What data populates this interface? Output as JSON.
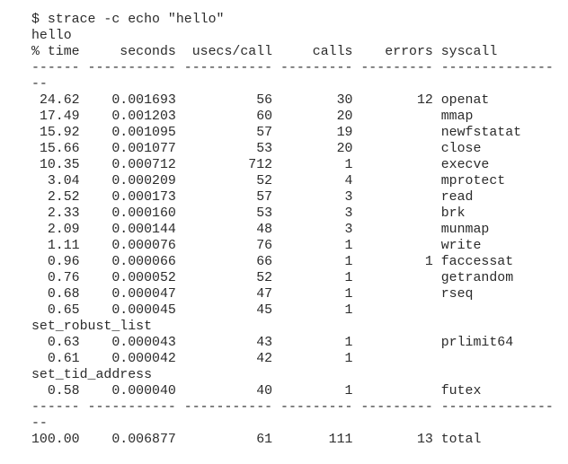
{
  "command": "$ strace -c echo \"hello\"",
  "output": "hello",
  "headers": [
    "% time",
    "seconds",
    "usecs/call",
    "calls",
    "errors",
    "syscall"
  ],
  "rows": [
    {
      "pct": "24.62",
      "seconds": "0.001693",
      "usecs": "56",
      "calls": "30",
      "errors": "12",
      "syscall": "openat"
    },
    {
      "pct": "17.49",
      "seconds": "0.001203",
      "usecs": "60",
      "calls": "20",
      "errors": "",
      "syscall": "mmap"
    },
    {
      "pct": "15.92",
      "seconds": "0.001095",
      "usecs": "57",
      "calls": "19",
      "errors": "",
      "syscall": "newfstatat"
    },
    {
      "pct": "15.66",
      "seconds": "0.001077",
      "usecs": "53",
      "calls": "20",
      "errors": "",
      "syscall": "close"
    },
    {
      "pct": "10.35",
      "seconds": "0.000712",
      "usecs": "712",
      "calls": "1",
      "errors": "",
      "syscall": "execve"
    },
    {
      "pct": "3.04",
      "seconds": "0.000209",
      "usecs": "52",
      "calls": "4",
      "errors": "",
      "syscall": "mprotect"
    },
    {
      "pct": "2.52",
      "seconds": "0.000173",
      "usecs": "57",
      "calls": "3",
      "errors": "",
      "syscall": "read"
    },
    {
      "pct": "2.33",
      "seconds": "0.000160",
      "usecs": "53",
      "calls": "3",
      "errors": "",
      "syscall": "brk"
    },
    {
      "pct": "2.09",
      "seconds": "0.000144",
      "usecs": "48",
      "calls": "3",
      "errors": "",
      "syscall": "munmap"
    },
    {
      "pct": "1.11",
      "seconds": "0.000076",
      "usecs": "76",
      "calls": "1",
      "errors": "",
      "syscall": "write"
    },
    {
      "pct": "0.96",
      "seconds": "0.000066",
      "usecs": "66",
      "calls": "1",
      "errors": "1",
      "syscall": "faccessat"
    },
    {
      "pct": "0.76",
      "seconds": "0.000052",
      "usecs": "52",
      "calls": "1",
      "errors": "",
      "syscall": "getrandom"
    },
    {
      "pct": "0.68",
      "seconds": "0.000047",
      "usecs": "47",
      "calls": "1",
      "errors": "",
      "syscall": "rseq"
    },
    {
      "pct": "0.65",
      "seconds": "0.000045",
      "usecs": "45",
      "calls": "1",
      "errors": "",
      "syscall": "set_robust_list"
    },
    {
      "pct": "0.63",
      "seconds": "0.000043",
      "usecs": "43",
      "calls": "1",
      "errors": "",
      "syscall": "prlimit64"
    },
    {
      "pct": "0.61",
      "seconds": "0.000042",
      "usecs": "42",
      "calls": "1",
      "errors": "",
      "syscall": "set_tid_address"
    },
    {
      "pct": "0.58",
      "seconds": "0.000040",
      "usecs": "40",
      "calls": "1",
      "errors": "",
      "syscall": "futex"
    }
  ],
  "total": {
    "pct": "100.00",
    "seconds": "0.006877",
    "usecs": "61",
    "calls": "111",
    "errors": "13",
    "syscall": "total"
  }
}
